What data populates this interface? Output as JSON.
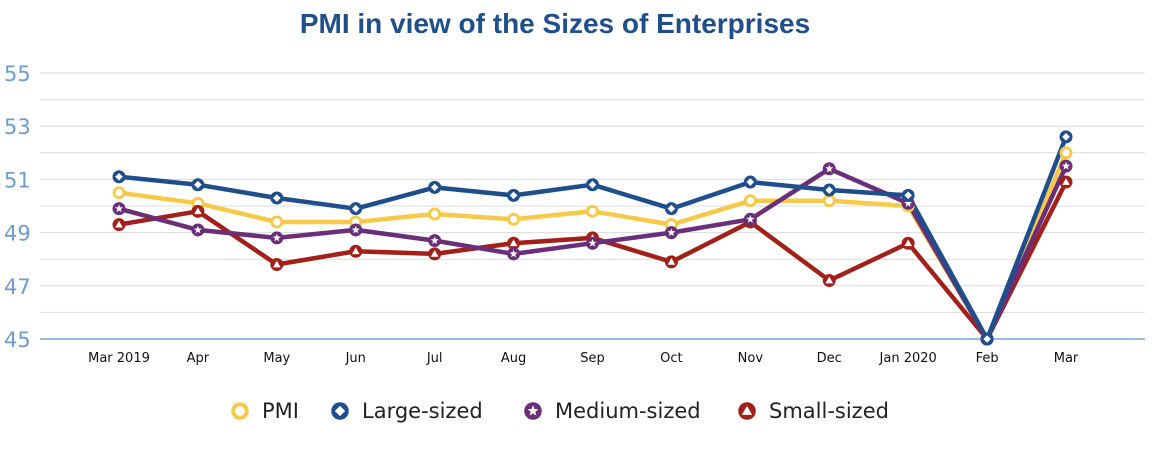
{
  "chart_data": {
    "type": "line",
    "title": "PMI in view of the Sizes of Enterprises",
    "xlabel": "",
    "ylabel": "",
    "ylim": [
      45,
      55
    ],
    "yticks": [
      45,
      47,
      49,
      51,
      53,
      55
    ],
    "grid": true,
    "legend_position": "bottom",
    "categories": [
      "Mar 2019",
      "Apr",
      "May",
      "Jun",
      "Jul",
      "Aug",
      "Sep",
      "Oct",
      "Nov",
      "Dec",
      "Jan 2020",
      "Feb",
      "Mar"
    ],
    "series": [
      {
        "name": "PMI",
        "color": "#f7c948",
        "marker": "circle",
        "values": [
          50.5,
          50.1,
          49.4,
          49.4,
          49.7,
          49.5,
          49.8,
          49.3,
          50.2,
          50.2,
          50.0,
          45.0,
          52.0
        ]
      },
      {
        "name": "Large-sized",
        "color": "#1f4e8c",
        "marker": "diamond",
        "values": [
          51.1,
          50.8,
          50.3,
          49.9,
          50.7,
          50.4,
          50.8,
          49.9,
          50.9,
          50.6,
          50.4,
          45.0,
          52.6
        ]
      },
      {
        "name": "Medium-sized",
        "color": "#6b2f7a",
        "marker": "star",
        "values": [
          49.9,
          49.1,
          48.8,
          49.1,
          48.7,
          48.2,
          48.6,
          49.0,
          49.5,
          51.4,
          50.1,
          45.0,
          51.5
        ]
      },
      {
        "name": "Small-sized",
        "color": "#a3201a",
        "marker": "triangle",
        "values": [
          49.3,
          49.8,
          47.8,
          48.3,
          48.2,
          48.6,
          48.8,
          47.9,
          49.4,
          47.2,
          48.6,
          45.0,
          50.9
        ]
      }
    ]
  }
}
